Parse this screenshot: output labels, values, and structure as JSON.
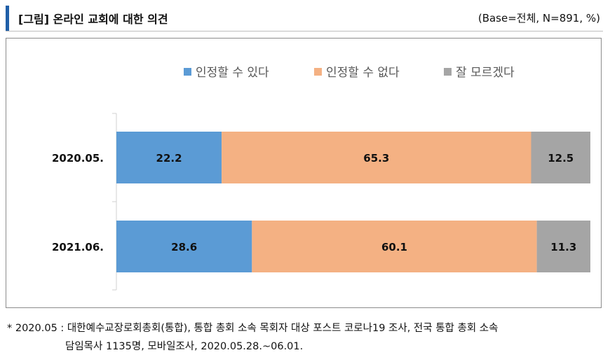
{
  "header": {
    "title": "[그림] 온라인 교회에 대한 의견",
    "base": "(Base=전체, N=891, %)"
  },
  "footnote": {
    "line1": "* 2020.05 : 대한예수교장로회총회(통합), 통합 총회 소속 목회자 대상 포스트 코로나19 조사, 전국 통합 총회 소속",
    "line2": "담임목사 1135명, 모바일조사, 2020.05.28.~06.01."
  },
  "chart_data": {
    "type": "bar",
    "orientation": "horizontal",
    "stacked": true,
    "categories": [
      "2020.05.",
      "2021.06."
    ],
    "series": [
      {
        "name": "인정할 수 있다",
        "values": [
          22.2,
          28.6
        ],
        "color": "#5b9bd5"
      },
      {
        "name": "인정할 수 없다",
        "values": [
          65.3,
          60.1
        ],
        "color": "#f4b183"
      },
      {
        "name": "잘 모르겠다",
        "values": [
          12.5,
          11.3
        ],
        "color": "#a5a5a5"
      }
    ],
    "xlim": [
      0,
      100
    ],
    "legend_position": "top",
    "grid": false
  }
}
